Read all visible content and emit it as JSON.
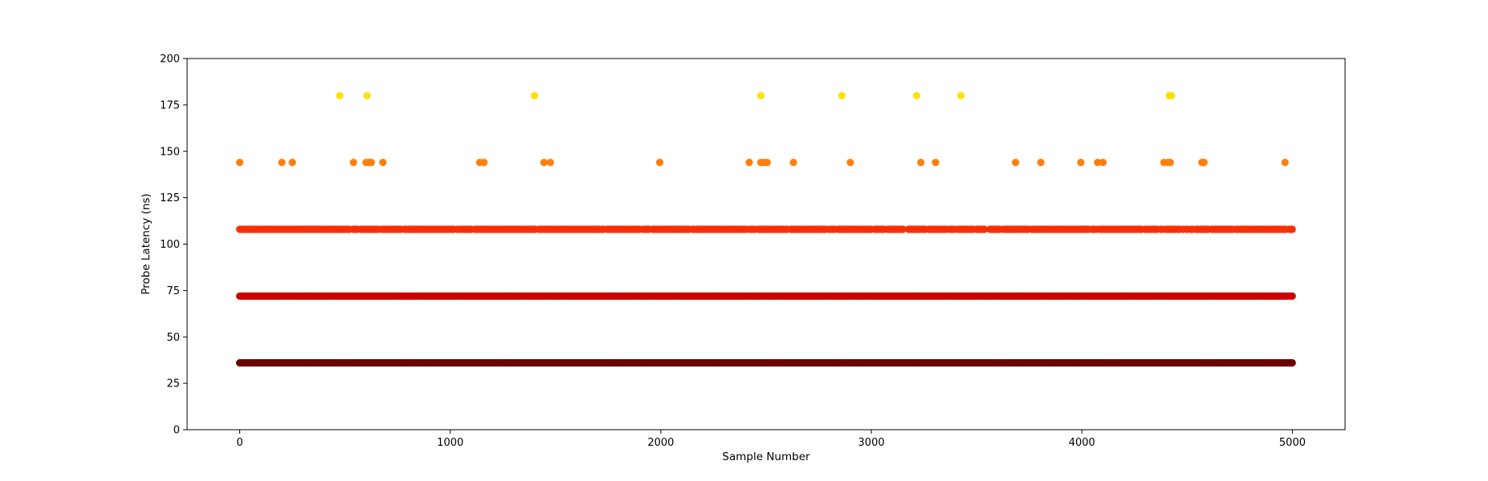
{
  "chart_data": {
    "type": "scatter",
    "title": "",
    "xlabel": "Sample Number",
    "ylabel": "Probe Latency (ns)",
    "xlim": [
      -250,
      5250
    ],
    "ylim": [
      0,
      200
    ],
    "xticks": [
      0,
      1000,
      2000,
      3000,
      4000,
      5000
    ],
    "yticks": [
      0,
      25,
      50,
      75,
      100,
      125,
      150,
      175,
      200
    ],
    "grid": false,
    "legend": "none",
    "x_range": [
      0,
      4999
    ],
    "series": [
      {
        "y": 36,
        "color": "#6b0000",
        "density": "every sample"
      },
      {
        "y": 72,
        "color": "#cc0000",
        "density": "every sample"
      },
      {
        "y": 108,
        "color": "#ff2e00",
        "density": "dense"
      },
      {
        "y": 144,
        "color": "#ff7f0e",
        "x": [
          0,
          200,
          250,
          540,
          600,
          615,
          625,
          680,
          1140,
          1160,
          1445,
          1475,
          1995,
          2420,
          2475,
          2490,
          2505,
          2630,
          2900,
          3235,
          3305,
          3685,
          3805,
          3995,
          4075,
          4100,
          4390,
          4410,
          4420,
          4570,
          4580,
          4965
        ]
      },
      {
        "y": 180,
        "color": "#ffe000",
        "x": [
          475,
          605,
          1400,
          2475,
          2860,
          3215,
          3425,
          4415,
          4425
        ]
      }
    ]
  }
}
